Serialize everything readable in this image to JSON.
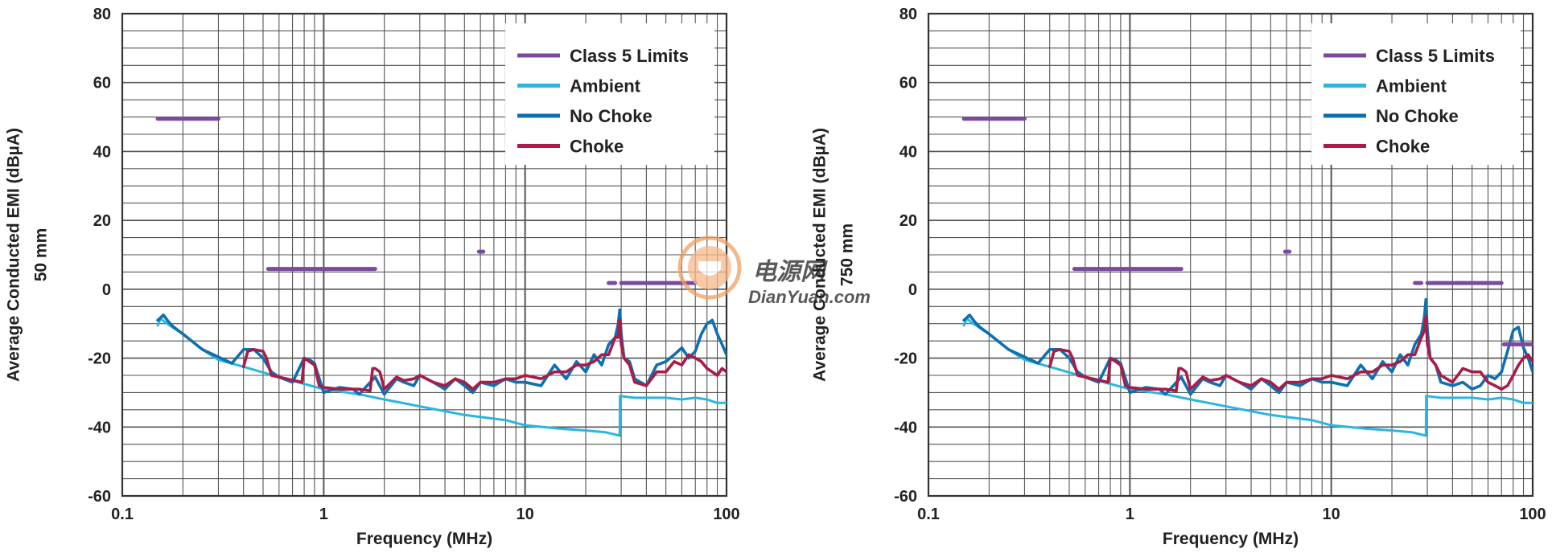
{
  "chart_data": [
    {
      "type": "line",
      "title": "",
      "xlabel": "Frequency (MHz)",
      "ylabel": "Average Conducted EMI (dBµA)",
      "ylabel2": "50 mm",
      "xscale": "log",
      "xlim": [
        0.1,
        100
      ],
      "ylim": [
        -60,
        80
      ],
      "grid": true,
      "legend_position": "top-right",
      "x_ticks": [
        "0.1",
        "1",
        "10",
        "100"
      ],
      "y_ticks": [
        "-60",
        "-40",
        "-20",
        "0",
        "20",
        "40",
        "60",
        "80"
      ],
      "legend": [
        {
          "name": "Class 5 Limits",
          "color": "#7b4a9c"
        },
        {
          "name": "Ambient",
          "color": "#29b6e0"
        },
        {
          "name": "No Choke",
          "color": "#0f6faf"
        },
        {
          "name": "Choke",
          "color": "#a81c48"
        }
      ],
      "limits": [
        {
          "x": [
            0.15,
            0.3
          ],
          "y": 49.5
        },
        {
          "x": [
            0.53,
            1.8
          ],
          "y": 5.9
        },
        {
          "x": [
            5.9,
            6.2
          ],
          "y": 10.9
        },
        {
          "x": [
            26,
            28
          ],
          "y": 1.8
        },
        {
          "x": [
            30,
            70
          ],
          "y": 1.8
        }
      ],
      "series": [
        {
          "name": "Ambient",
          "color": "#29b6e0",
          "x": [
            0.15,
            0.155,
            0.165,
            0.2,
            0.25,
            0.3,
            0.4,
            0.6,
            0.8,
            1,
            1.5,
            2,
            3,
            5,
            8,
            10,
            15,
            20,
            25,
            29.5,
            29.6,
            35,
            40,
            50,
            60,
            70,
            80,
            90,
            100
          ],
          "y": [
            -10.5,
            -8.5,
            -9.8,
            -13,
            -17.5,
            -20.5,
            -22.5,
            -25.5,
            -27.5,
            -29,
            -30.5,
            -32,
            -34,
            -36.5,
            -38,
            -39.5,
            -40.5,
            -41,
            -41.5,
            -42.5,
            -31,
            -31.5,
            -31.5,
            -31.5,
            -32,
            -31.5,
            -32,
            -33,
            -33
          ]
        },
        {
          "name": "No Choke",
          "color": "#0f6faf",
          "x": [
            0.15,
            0.16,
            0.17,
            0.18,
            0.2,
            0.25,
            0.35,
            0.4,
            0.45,
            0.5,
            0.55,
            0.6,
            0.7,
            0.8,
            0.85,
            0.9,
            1.0,
            1.2,
            1.4,
            1.5,
            1.8,
            2.0,
            2.3,
            2.5,
            2.8,
            3,
            3.5,
            4,
            4.5,
            5,
            5.5,
            6,
            7,
            8,
            9,
            10,
            12,
            14,
            16,
            18,
            20,
            22,
            24,
            26,
            28,
            29,
            29.5,
            30,
            31,
            33,
            35,
            40,
            45,
            50,
            55,
            60,
            65,
            70,
            75,
            80,
            85,
            90,
            95,
            100
          ],
          "y": [
            -9,
            -7.5,
            -9.5,
            -11,
            -13,
            -17.5,
            -21.5,
            -17.5,
            -17.5,
            -20,
            -24,
            -25.5,
            -27,
            -20,
            -20.5,
            -21.5,
            -30,
            -28.5,
            -29,
            -30.5,
            -25.5,
            -30.5,
            -26,
            -27,
            -28,
            -25,
            -27,
            -29,
            -26,
            -28,
            -30,
            -27,
            -28,
            -26,
            -27,
            -27,
            -28,
            -22,
            -26,
            -21,
            -24,
            -19,
            -22,
            -16,
            -14,
            -10,
            -6,
            -13,
            -20,
            -21,
            -26,
            -28,
            -22,
            -21,
            -19,
            -17,
            -20,
            -18,
            -13,
            -10,
            -9,
            -13,
            -16,
            -19
          ]
        },
        {
          "name": "Choke",
          "color": "#a81c48",
          "x": [
            0.4,
            0.42,
            0.45,
            0.5,
            0.52,
            0.55,
            0.78,
            0.8,
            0.85,
            0.9,
            0.95,
            1.0,
            1.2,
            1.4,
            1.5,
            1.7,
            1.75,
            1.8,
            1.9,
            2.0,
            2.3,
            2.5,
            2.8,
            3,
            3.5,
            4,
            4.5,
            5,
            5.5,
            6,
            7,
            8,
            9,
            10,
            12,
            14,
            16,
            18,
            20,
            22,
            24,
            26,
            28,
            29,
            29.5,
            30,
            31,
            33,
            35,
            40,
            45,
            50,
            55,
            60,
            65,
            70,
            75,
            80,
            85,
            90,
            95,
            100
          ],
          "y": [
            -22.5,
            -18,
            -17.5,
            -18,
            -20,
            -25,
            -27,
            -20,
            -21,
            -22,
            -28,
            -28.5,
            -29,
            -29,
            -29,
            -29.5,
            -23,
            -23,
            -24,
            -29,
            -25.5,
            -26.5,
            -26,
            -25,
            -27,
            -28,
            -26,
            -27,
            -29,
            -27,
            -27,
            -26,
            -26,
            -25,
            -26,
            -24,
            -24,
            -22,
            -22,
            -21,
            -19,
            -19,
            -14,
            -14,
            -9,
            -16,
            -20,
            -22,
            -27,
            -28,
            -24,
            -24,
            -21,
            -22,
            -19,
            -20,
            -21,
            -23,
            -24,
            -25,
            -23,
            -24
          ]
        }
      ]
    },
    {
      "type": "line",
      "title": "",
      "xlabel": "Frequency (MHz)",
      "ylabel": "Average Conducted EMI (dBµA)",
      "ylabel2": "750 mm",
      "xscale": "log",
      "xlim": [
        0.1,
        100
      ],
      "ylim": [
        -60,
        80
      ],
      "grid": true,
      "legend_position": "top-right",
      "x_ticks": [
        "0.1",
        "1",
        "10",
        "100"
      ],
      "y_ticks": [
        "-60",
        "-40",
        "-20",
        "0",
        "20",
        "40",
        "60",
        "80"
      ],
      "legend": [
        {
          "name": "Class 5 Limits",
          "color": "#7b4a9c"
        },
        {
          "name": "Ambient",
          "color": "#29b6e0"
        },
        {
          "name": "No Choke",
          "color": "#0f6faf"
        },
        {
          "name": "Choke",
          "color": "#a81c48"
        }
      ],
      "limits": [
        {
          "x": [
            0.15,
            0.3
          ],
          "y": 49.5
        },
        {
          "x": [
            0.53,
            1.8
          ],
          "y": 5.9
        },
        {
          "x": [
            5.9,
            6.2
          ],
          "y": 10.9
        },
        {
          "x": [
            26,
            28
          ],
          "y": 1.8
        },
        {
          "x": [
            30,
            70
          ],
          "y": 1.8
        },
        {
          "x": [
            72,
            100
          ],
          "y": -16
        }
      ],
      "series": [
        {
          "name": "Ambient",
          "color": "#29b6e0",
          "x": [
            0.15,
            0.155,
            0.165,
            0.2,
            0.25,
            0.3,
            0.4,
            0.6,
            0.8,
            1,
            1.5,
            2,
            3,
            5,
            8,
            10,
            15,
            20,
            25,
            29.5,
            29.6,
            35,
            40,
            50,
            60,
            70,
            80,
            90,
            100
          ],
          "y": [
            -10.5,
            -8.5,
            -9.8,
            -13,
            -17.5,
            -20.5,
            -22.5,
            -25.5,
            -27.5,
            -29,
            -30.5,
            -32,
            -34,
            -36.5,
            -38,
            -39.5,
            -40.5,
            -41,
            -41.5,
            -42.5,
            -31,
            -31.5,
            -31.5,
            -31.5,
            -32,
            -31.5,
            -32,
            -33,
            -33
          ]
        },
        {
          "name": "No Choke",
          "color": "#0f6faf",
          "x": [
            0.15,
            0.16,
            0.17,
            0.18,
            0.2,
            0.25,
            0.35,
            0.4,
            0.45,
            0.5,
            0.55,
            0.6,
            0.7,
            0.8,
            0.85,
            0.9,
            1.0,
            1.2,
            1.4,
            1.5,
            1.8,
            2.0,
            2.3,
            2.5,
            2.8,
            3,
            3.5,
            4,
            4.5,
            5,
            5.5,
            6,
            7,
            8,
            9,
            10,
            12,
            14,
            16,
            18,
            20,
            22,
            24,
            26,
            28,
            29,
            29.5,
            30,
            31,
            33,
            35,
            40,
            45,
            50,
            55,
            60,
            65,
            70,
            75,
            80,
            85,
            90,
            95,
            100
          ],
          "y": [
            -9,
            -7.5,
            -9.5,
            -11,
            -13,
            -17.5,
            -21.5,
            -17.5,
            -17.5,
            -20,
            -24,
            -25.5,
            -27,
            -20,
            -20.5,
            -21.5,
            -30,
            -28.5,
            -29,
            -30.5,
            -25.5,
            -30.5,
            -26,
            -27,
            -28,
            -25,
            -27,
            -29,
            -26,
            -28,
            -30,
            -27,
            -28,
            -26,
            -27,
            -27,
            -28,
            -22,
            -26,
            -21,
            -24,
            -19,
            -22,
            -16,
            -13,
            -8,
            -3,
            -12,
            -20,
            -22,
            -27,
            -28,
            -27,
            -29,
            -28,
            -25,
            -26,
            -24,
            -18,
            -12,
            -11,
            -17,
            -20,
            -24
          ]
        },
        {
          "name": "Choke",
          "color": "#a81c48",
          "x": [
            0.4,
            0.42,
            0.45,
            0.5,
            0.52,
            0.55,
            0.78,
            0.8,
            0.85,
            0.9,
            0.95,
            1.0,
            1.2,
            1.4,
            1.5,
            1.7,
            1.75,
            1.8,
            1.9,
            2.0,
            2.3,
            2.5,
            2.8,
            3,
            3.5,
            4,
            4.5,
            5,
            5.5,
            6,
            7,
            8,
            9,
            10,
            12,
            14,
            16,
            18,
            20,
            22,
            24,
            26,
            28,
            29,
            29.5,
            30,
            31,
            33,
            35,
            40,
            45,
            50,
            55,
            60,
            65,
            70,
            75,
            80,
            85,
            90,
            95,
            100
          ],
          "y": [
            -22.5,
            -18,
            -17.5,
            -18,
            -20,
            -25,
            -27,
            -20,
            -21,
            -22,
            -28,
            -28.5,
            -29,
            -29,
            -29,
            -29.5,
            -23,
            -23,
            -24,
            -29,
            -25.5,
            -26.5,
            -26,
            -25,
            -27,
            -28,
            -26,
            -27,
            -29,
            -27,
            -27,
            -26,
            -26,
            -25,
            -26,
            -24,
            -24,
            -22,
            -22,
            -21,
            -19,
            -19,
            -14,
            -12,
            -8,
            -16,
            -20,
            -22,
            -25,
            -27,
            -23,
            -24,
            -24,
            -27,
            -28,
            -29,
            -28,
            -25,
            -22,
            -20,
            -19,
            -21
          ]
        }
      ]
    }
  ],
  "watermark": {
    "text_cn": "电源网",
    "text_en": "DianYuan.com"
  }
}
